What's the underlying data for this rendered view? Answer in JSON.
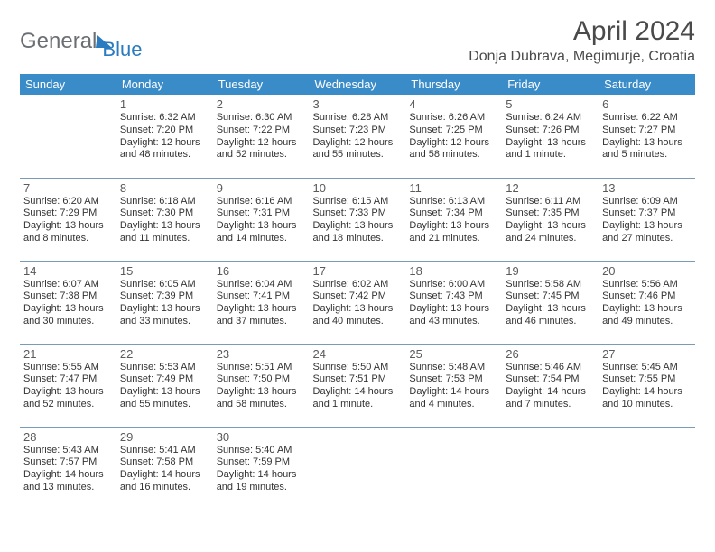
{
  "brand": {
    "word1": "General",
    "word2": "Blue"
  },
  "title": "April 2024",
  "location": "Donja Dubrava, Megimurje, Croatia",
  "colors": {
    "header_bg": "#3a8cc9",
    "header_text": "#ffffff",
    "brand_gray": "#6b6f73",
    "brand_blue": "#2a7bbf",
    "cell_border": "#7a9ab5",
    "text": "#333333"
  },
  "typography": {
    "title_fontsize": 30,
    "location_fontsize": 16,
    "weekday_fontsize": 13,
    "daynum_fontsize": 13,
    "body_fontsize": 11
  },
  "weekdays": [
    "Sunday",
    "Monday",
    "Tuesday",
    "Wednesday",
    "Thursday",
    "Friday",
    "Saturday"
  ],
  "weeks": [
    [
      null,
      {
        "n": "1",
        "sr": "Sunrise: 6:32 AM",
        "ss": "Sunset: 7:20 PM",
        "d1": "Daylight: 12 hours",
        "d2": "and 48 minutes."
      },
      {
        "n": "2",
        "sr": "Sunrise: 6:30 AM",
        "ss": "Sunset: 7:22 PM",
        "d1": "Daylight: 12 hours",
        "d2": "and 52 minutes."
      },
      {
        "n": "3",
        "sr": "Sunrise: 6:28 AM",
        "ss": "Sunset: 7:23 PM",
        "d1": "Daylight: 12 hours",
        "d2": "and 55 minutes."
      },
      {
        "n": "4",
        "sr": "Sunrise: 6:26 AM",
        "ss": "Sunset: 7:25 PM",
        "d1": "Daylight: 12 hours",
        "d2": "and 58 minutes."
      },
      {
        "n": "5",
        "sr": "Sunrise: 6:24 AM",
        "ss": "Sunset: 7:26 PM",
        "d1": "Daylight: 13 hours",
        "d2": "and 1 minute."
      },
      {
        "n": "6",
        "sr": "Sunrise: 6:22 AM",
        "ss": "Sunset: 7:27 PM",
        "d1": "Daylight: 13 hours",
        "d2": "and 5 minutes."
      }
    ],
    [
      {
        "n": "7",
        "sr": "Sunrise: 6:20 AM",
        "ss": "Sunset: 7:29 PM",
        "d1": "Daylight: 13 hours",
        "d2": "and 8 minutes."
      },
      {
        "n": "8",
        "sr": "Sunrise: 6:18 AM",
        "ss": "Sunset: 7:30 PM",
        "d1": "Daylight: 13 hours",
        "d2": "and 11 minutes."
      },
      {
        "n": "9",
        "sr": "Sunrise: 6:16 AM",
        "ss": "Sunset: 7:31 PM",
        "d1": "Daylight: 13 hours",
        "d2": "and 14 minutes."
      },
      {
        "n": "10",
        "sr": "Sunrise: 6:15 AM",
        "ss": "Sunset: 7:33 PM",
        "d1": "Daylight: 13 hours",
        "d2": "and 18 minutes."
      },
      {
        "n": "11",
        "sr": "Sunrise: 6:13 AM",
        "ss": "Sunset: 7:34 PM",
        "d1": "Daylight: 13 hours",
        "d2": "and 21 minutes."
      },
      {
        "n": "12",
        "sr": "Sunrise: 6:11 AM",
        "ss": "Sunset: 7:35 PM",
        "d1": "Daylight: 13 hours",
        "d2": "and 24 minutes."
      },
      {
        "n": "13",
        "sr": "Sunrise: 6:09 AM",
        "ss": "Sunset: 7:37 PM",
        "d1": "Daylight: 13 hours",
        "d2": "and 27 minutes."
      }
    ],
    [
      {
        "n": "14",
        "sr": "Sunrise: 6:07 AM",
        "ss": "Sunset: 7:38 PM",
        "d1": "Daylight: 13 hours",
        "d2": "and 30 minutes."
      },
      {
        "n": "15",
        "sr": "Sunrise: 6:05 AM",
        "ss": "Sunset: 7:39 PM",
        "d1": "Daylight: 13 hours",
        "d2": "and 33 minutes."
      },
      {
        "n": "16",
        "sr": "Sunrise: 6:04 AM",
        "ss": "Sunset: 7:41 PM",
        "d1": "Daylight: 13 hours",
        "d2": "and 37 minutes."
      },
      {
        "n": "17",
        "sr": "Sunrise: 6:02 AM",
        "ss": "Sunset: 7:42 PM",
        "d1": "Daylight: 13 hours",
        "d2": "and 40 minutes."
      },
      {
        "n": "18",
        "sr": "Sunrise: 6:00 AM",
        "ss": "Sunset: 7:43 PM",
        "d1": "Daylight: 13 hours",
        "d2": "and 43 minutes."
      },
      {
        "n": "19",
        "sr": "Sunrise: 5:58 AM",
        "ss": "Sunset: 7:45 PM",
        "d1": "Daylight: 13 hours",
        "d2": "and 46 minutes."
      },
      {
        "n": "20",
        "sr": "Sunrise: 5:56 AM",
        "ss": "Sunset: 7:46 PM",
        "d1": "Daylight: 13 hours",
        "d2": "and 49 minutes."
      }
    ],
    [
      {
        "n": "21",
        "sr": "Sunrise: 5:55 AM",
        "ss": "Sunset: 7:47 PM",
        "d1": "Daylight: 13 hours",
        "d2": "and 52 minutes."
      },
      {
        "n": "22",
        "sr": "Sunrise: 5:53 AM",
        "ss": "Sunset: 7:49 PM",
        "d1": "Daylight: 13 hours",
        "d2": "and 55 minutes."
      },
      {
        "n": "23",
        "sr": "Sunrise: 5:51 AM",
        "ss": "Sunset: 7:50 PM",
        "d1": "Daylight: 13 hours",
        "d2": "and 58 minutes."
      },
      {
        "n": "24",
        "sr": "Sunrise: 5:50 AM",
        "ss": "Sunset: 7:51 PM",
        "d1": "Daylight: 14 hours",
        "d2": "and 1 minute."
      },
      {
        "n": "25",
        "sr": "Sunrise: 5:48 AM",
        "ss": "Sunset: 7:53 PM",
        "d1": "Daylight: 14 hours",
        "d2": "and 4 minutes."
      },
      {
        "n": "26",
        "sr": "Sunrise: 5:46 AM",
        "ss": "Sunset: 7:54 PM",
        "d1": "Daylight: 14 hours",
        "d2": "and 7 minutes."
      },
      {
        "n": "27",
        "sr": "Sunrise: 5:45 AM",
        "ss": "Sunset: 7:55 PM",
        "d1": "Daylight: 14 hours",
        "d2": "and 10 minutes."
      }
    ],
    [
      {
        "n": "28",
        "sr": "Sunrise: 5:43 AM",
        "ss": "Sunset: 7:57 PM",
        "d1": "Daylight: 14 hours",
        "d2": "and 13 minutes."
      },
      {
        "n": "29",
        "sr": "Sunrise: 5:41 AM",
        "ss": "Sunset: 7:58 PM",
        "d1": "Daylight: 14 hours",
        "d2": "and 16 minutes."
      },
      {
        "n": "30",
        "sr": "Sunrise: 5:40 AM",
        "ss": "Sunset: 7:59 PM",
        "d1": "Daylight: 14 hours",
        "d2": "and 19 minutes."
      },
      null,
      null,
      null,
      null
    ]
  ]
}
